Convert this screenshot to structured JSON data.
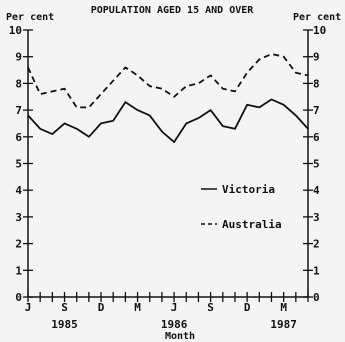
{
  "chart_data": {
    "type": "line",
    "title": "POPULATION AGED 15 AND OVER",
    "ylabel_left": "Per cent",
    "ylabel_right": "Per cent",
    "xlabel": "Month",
    "ylim": [
      0,
      10
    ],
    "yticks": [
      0,
      1,
      2,
      3,
      4,
      5,
      6,
      7,
      8,
      9,
      10
    ],
    "x": [
      "Jun 1985",
      "Jul 1985",
      "Aug 1985",
      "Sep 1985",
      "Oct 1985",
      "Nov 1985",
      "Dec 1985",
      "Jan 1986",
      "Feb 1986",
      "Mar 1986",
      "Apr 1986",
      "May 1986",
      "Jun 1986",
      "Jul 1986",
      "Aug 1986",
      "Sep 1986",
      "Oct 1986",
      "Nov 1986",
      "Dec 1986",
      "Jan 1987",
      "Feb 1987",
      "Mar 1987",
      "Apr 1987",
      "May 1987"
    ],
    "month_tick_labels": [
      {
        "label": "J",
        "index": 0
      },
      {
        "label": "S",
        "index": 3
      },
      {
        "label": "D",
        "index": 6
      },
      {
        "label": "M",
        "index": 9
      },
      {
        "label": "J",
        "index": 12
      },
      {
        "label": "S",
        "index": 15
      },
      {
        "label": "D",
        "index": 18
      },
      {
        "label": "M",
        "index": 21
      }
    ],
    "year_labels": [
      {
        "label": "1985",
        "index": 3
      },
      {
        "label": "1986",
        "index": 12
      },
      {
        "label": "1987",
        "index": 21
      }
    ],
    "series": [
      {
        "name": "Victoria",
        "style": "solid",
        "values": [
          6.8,
          6.3,
          6.1,
          6.5,
          6.3,
          6.0,
          6.5,
          6.6,
          7.3,
          7.0,
          6.8,
          6.2,
          5.8,
          6.5,
          6.7,
          7.0,
          6.4,
          6.3,
          7.2,
          7.1,
          7.4,
          7.2,
          6.8,
          6.3
        ]
      },
      {
        "name": "Australia",
        "style": "dashed",
        "values": [
          8.6,
          7.6,
          7.7,
          7.8,
          7.1,
          7.1,
          7.6,
          8.1,
          8.6,
          8.3,
          7.9,
          7.8,
          7.5,
          7.9,
          8.0,
          8.3,
          7.8,
          7.7,
          8.4,
          8.9,
          9.1,
          9.0,
          8.4,
          8.3
        ]
      }
    ],
    "legend_position": "right-middle",
    "grid": false
  }
}
